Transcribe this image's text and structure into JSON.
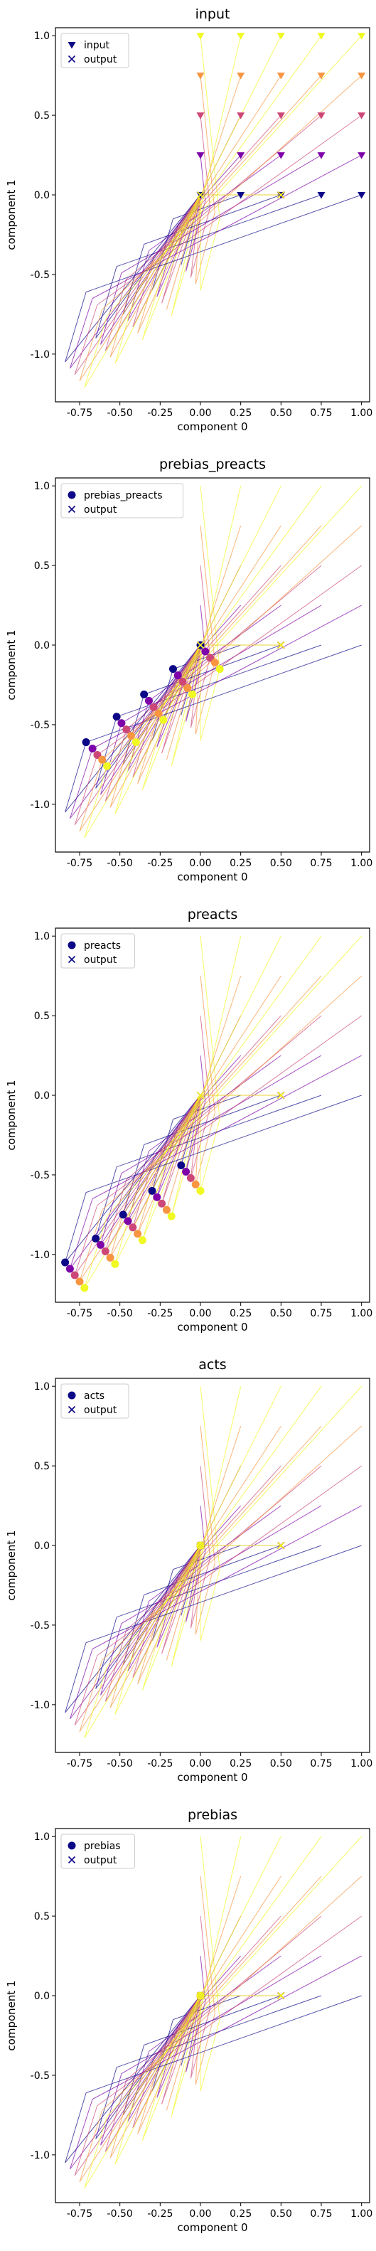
{
  "chart_data": [
    {
      "type": "line",
      "title": "input",
      "xlabel": "component 0",
      "ylabel": "component 1",
      "xlim": [
        -0.9,
        1.05
      ],
      "ylim": [
        -1.3,
        1.05
      ],
      "xticks": [
        "-0.75",
        "-0.50",
        "-0.25",
        "0.00",
        "0.25",
        "0.50",
        "0.75",
        "1.00"
      ],
      "yticks": [
        "-1.0",
        "-0.5",
        "0.0",
        "0.5",
        "1.0"
      ],
      "legend": {
        "placement": "top-left",
        "marker_label": "input",
        "output_label": "output"
      },
      "marker": "triangle",
      "points_set": "grid",
      "grid": false
    },
    {
      "type": "line",
      "title": "prebias_preacts",
      "xlabel": "component 0",
      "ylabel": "component 1",
      "xlim": [
        -0.9,
        1.05
      ],
      "ylim": [
        -1.3,
        1.05
      ],
      "xticks": [
        "-0.75",
        "-0.50",
        "-0.25",
        "0.00",
        "0.25",
        "0.50",
        "0.75",
        "1.00"
      ],
      "yticks": [
        "-1.0",
        "-0.5",
        "0.0",
        "0.5",
        "1.0"
      ],
      "legend": {
        "placement": "top-left",
        "marker_label": "prebias_preacts",
        "output_label": "output"
      },
      "marker": "circle",
      "points_set": "prebias",
      "grid": false
    },
    {
      "type": "line",
      "title": "preacts",
      "xlabel": "component 0",
      "ylabel": "component 1",
      "xlim": [
        -0.9,
        1.05
      ],
      "ylim": [
        -1.3,
        1.05
      ],
      "xticks": [
        "-0.75",
        "-0.50",
        "-0.25",
        "0.00",
        "0.25",
        "0.50",
        "0.75",
        "1.00"
      ],
      "yticks": [
        "-1.0",
        "-0.5",
        "0.0",
        "0.5",
        "1.0"
      ],
      "legend": {
        "placement": "top-left",
        "marker_label": "preacts",
        "output_label": "output"
      },
      "marker": "circle",
      "points_set": "preacts",
      "grid": false
    },
    {
      "type": "line",
      "title": "acts",
      "xlabel": "component 0",
      "ylabel": "component 1",
      "xlim": [
        -0.9,
        1.05
      ],
      "ylim": [
        -1.3,
        1.05
      ],
      "xticks": [
        "-0.75",
        "-0.50",
        "-0.25",
        "0.00",
        "0.25",
        "0.50",
        "0.75",
        "1.00"
      ],
      "yticks": [
        "-1.0",
        "-0.5",
        "0.0",
        "0.5",
        "1.0"
      ],
      "legend": {
        "placement": "top-left",
        "marker_label": "acts",
        "output_label": "output"
      },
      "marker": "circle",
      "points_set": "acts",
      "grid": false
    },
    {
      "type": "line",
      "title": "prebias",
      "xlabel": "component 0",
      "ylabel": "component 1",
      "xlim": [
        -0.9,
        1.05
      ],
      "ylim": [
        -1.3,
        1.05
      ],
      "xticks": [
        "-0.75",
        "-0.50",
        "-0.25",
        "0.00",
        "0.25",
        "0.50",
        "0.75",
        "1.00"
      ],
      "yticks": [
        "-1.0",
        "-0.5",
        "0.0",
        "0.5",
        "1.0"
      ],
      "legend": {
        "placement": "top-left",
        "marker_label": "prebias",
        "output_label": "output"
      },
      "marker": "circle",
      "points_set": "acts",
      "grid": false
    }
  ],
  "shared": {
    "colormap": "plasma",
    "colors": [
      "#0d0887",
      "#7e03a8",
      "#cc4778",
      "#f89540",
      "#f0f921"
    ],
    "input_points": [
      [
        0.0,
        0.0
      ],
      [
        0.0,
        0.25
      ],
      [
        0.0,
        0.5
      ],
      [
        0.0,
        0.75
      ],
      [
        0.0,
        1.0
      ],
      [
        0.25,
        0.0
      ],
      [
        0.25,
        0.25
      ],
      [
        0.25,
        0.5
      ],
      [
        0.25,
        0.75
      ],
      [
        0.25,
        1.0
      ],
      [
        0.5,
        0.0
      ],
      [
        0.5,
        0.25
      ],
      [
        0.5,
        0.5
      ],
      [
        0.5,
        0.75
      ],
      [
        0.5,
        1.0
      ],
      [
        0.75,
        0.0
      ],
      [
        0.75,
        0.25
      ],
      [
        0.75,
        0.5
      ],
      [
        0.75,
        0.75
      ],
      [
        0.75,
        1.0
      ],
      [
        1.0,
        0.0
      ],
      [
        1.0,
        0.25
      ],
      [
        1.0,
        0.5
      ],
      [
        1.0,
        0.75
      ],
      [
        1.0,
        1.0
      ]
    ],
    "output_points": [
      [
        0.0,
        0.0
      ],
      [
        0.0,
        0.0
      ],
      [
        0.0,
        0.0
      ],
      [
        0.0,
        0.0
      ],
      [
        0.0,
        0.0
      ],
      [
        0.5,
        0.0
      ],
      [
        0.5,
        0.0
      ],
      [
        0.5,
        0.0
      ],
      [
        0.5,
        0.0
      ],
      [
        0.5,
        0.0
      ],
      [
        0.5,
        0.0
      ],
      [
        0.5,
        0.0
      ],
      [
        0.5,
        0.0
      ],
      [
        0.5,
        0.0
      ],
      [
        0.5,
        0.0
      ],
      [
        0.5,
        0.0
      ],
      [
        0.5,
        0.0
      ],
      [
        0.5,
        0.0
      ],
      [
        0.5,
        0.0
      ],
      [
        0.5,
        0.0
      ],
      [
        0.5,
        0.0
      ],
      [
        0.5,
        0.0
      ],
      [
        0.5,
        0.0
      ],
      [
        0.5,
        0.0
      ],
      [
        0.5,
        0.0
      ]
    ],
    "prebias_points": [
      [
        0.0,
        0.0
      ],
      [
        0.03,
        -0.04
      ],
      [
        0.06,
        -0.08
      ],
      [
        0.09,
        -0.11
      ],
      [
        0.12,
        -0.15
      ],
      [
        -0.17,
        -0.15
      ],
      [
        -0.14,
        -0.19
      ],
      [
        -0.11,
        -0.23
      ],
      [
        -0.08,
        -0.27
      ],
      [
        -0.05,
        -0.31
      ],
      [
        -0.35,
        -0.31
      ],
      [
        -0.32,
        -0.35
      ],
      [
        -0.29,
        -0.39
      ],
      [
        -0.26,
        -0.43
      ],
      [
        -0.23,
        -0.47
      ],
      [
        -0.52,
        -0.45
      ],
      [
        -0.49,
        -0.49
      ],
      [
        -0.46,
        -0.53
      ],
      [
        -0.43,
        -0.57
      ],
      [
        -0.4,
        -0.61
      ],
      [
        -0.71,
        -0.61
      ],
      [
        -0.67,
        -0.65
      ],
      [
        -0.64,
        -0.69
      ],
      [
        -0.61,
        -0.72
      ],
      [
        -0.58,
        -0.76
      ]
    ],
    "preacts_points": [
      [
        -0.12,
        -0.44
      ],
      [
        -0.09,
        -0.48
      ],
      [
        -0.06,
        -0.52
      ],
      [
        -0.03,
        -0.56
      ],
      [
        0.0,
        -0.6
      ],
      [
        -0.3,
        -0.6
      ],
      [
        -0.27,
        -0.64
      ],
      [
        -0.24,
        -0.68
      ],
      [
        -0.21,
        -0.72
      ],
      [
        -0.18,
        -0.76
      ],
      [
        -0.48,
        -0.75
      ],
      [
        -0.45,
        -0.79
      ],
      [
        -0.42,
        -0.83
      ],
      [
        -0.39,
        -0.87
      ],
      [
        -0.36,
        -0.91
      ],
      [
        -0.65,
        -0.9
      ],
      [
        -0.62,
        -0.94
      ],
      [
        -0.59,
        -0.98
      ],
      [
        -0.56,
        -1.02
      ],
      [
        -0.53,
        -1.06
      ],
      [
        -0.84,
        -1.05
      ],
      [
        -0.81,
        -1.09
      ],
      [
        -0.78,
        -1.13
      ],
      [
        -0.75,
        -1.17
      ],
      [
        -0.72,
        -1.21
      ]
    ],
    "acts_points": [
      [
        0.0,
        0.0
      ],
      [
        0.0,
        0.0
      ],
      [
        0.0,
        0.0
      ],
      [
        0.0,
        0.0
      ],
      [
        0.0,
        0.0
      ],
      [
        0.0,
        0.0
      ],
      [
        0.0,
        0.0
      ],
      [
        0.0,
        0.0
      ],
      [
        0.0,
        0.0
      ],
      [
        0.0,
        0.0
      ],
      [
        0.0,
        0.0
      ],
      [
        0.0,
        0.0
      ],
      [
        0.0,
        0.0
      ],
      [
        0.0,
        0.0
      ],
      [
        0.0,
        0.0
      ],
      [
        0.0,
        0.0
      ],
      [
        0.0,
        0.0
      ],
      [
        0.0,
        0.0
      ],
      [
        0.0,
        0.0
      ],
      [
        0.0,
        0.0
      ],
      [
        0.0,
        0.0
      ],
      [
        0.0,
        0.0
      ],
      [
        0.0,
        0.0
      ],
      [
        0.0,
        0.0
      ],
      [
        0.0,
        0.0
      ]
    ]
  }
}
